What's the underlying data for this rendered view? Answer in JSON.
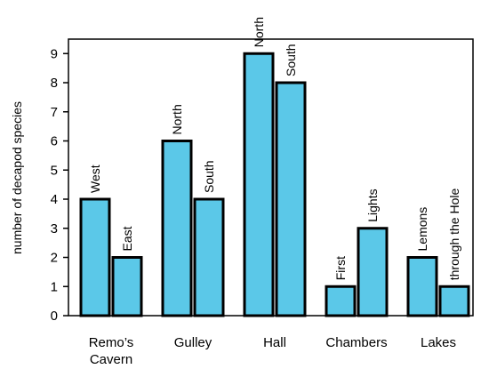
{
  "chart_data": {
    "type": "bar",
    "ylabel": "number of decapod species",
    "xlabel": "",
    "title": "",
    "ylim": [
      0,
      9
    ],
    "yticks": [
      0,
      1,
      2,
      3,
      4,
      5,
      6,
      7,
      8,
      9
    ],
    "grid": false,
    "bar_color": "#5bc8e8",
    "groups": [
      {
        "label": [
          "Remo’s",
          "Cavern"
        ],
        "bars": [
          {
            "label": [
              "West"
            ],
            "value": 4
          },
          {
            "label": [
              "East"
            ],
            "value": 2
          }
        ]
      },
      {
        "label": [
          "Gulley"
        ],
        "bars": [
          {
            "label": [
              "North"
            ],
            "value": 6
          },
          {
            "label": [
              "South"
            ],
            "value": 4
          }
        ]
      },
      {
        "label": [
          "Hall"
        ],
        "bars": [
          {
            "label": [
              "North"
            ],
            "value": 9
          },
          {
            "label": [
              "South"
            ],
            "value": 8
          }
        ]
      },
      {
        "label": [
          "Chambers"
        ],
        "bars": [
          {
            "label": [
              "First"
            ],
            "value": 1
          },
          {
            "label": [
              "Lights"
            ],
            "value": 3
          }
        ]
      },
      {
        "label": [
          "Lakes"
        ],
        "bars": [
          {
            "label": [
              "Lemons"
            ],
            "value": 2
          },
          {
            "label": [
              "through the Hole"
            ],
            "value": 1
          }
        ]
      }
    ]
  }
}
